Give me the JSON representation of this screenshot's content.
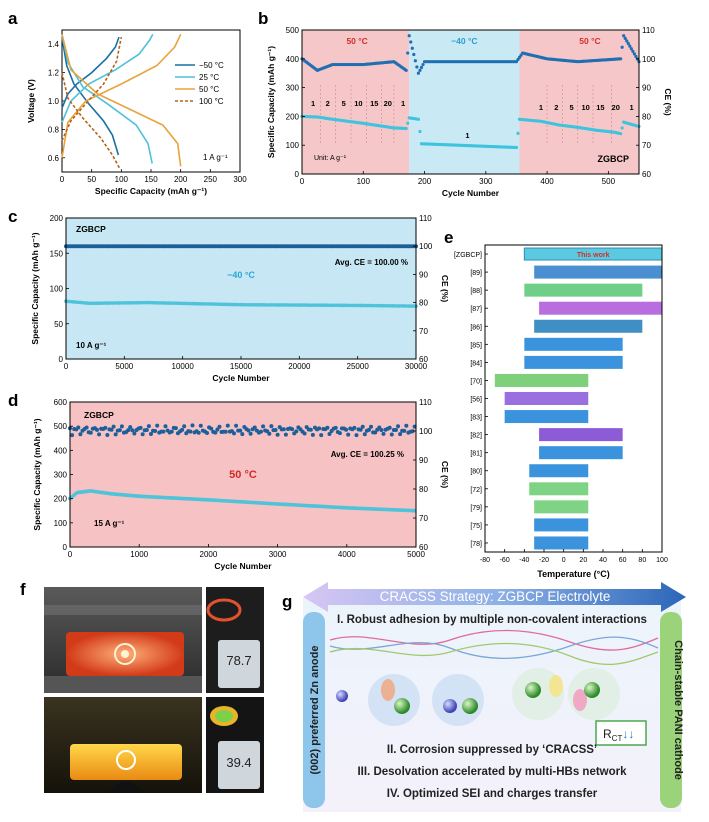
{
  "panel_labels": {
    "a": "a",
    "b": "b",
    "c": "c",
    "d": "d",
    "e": "e",
    "f": "f",
    "g": "g"
  },
  "colors": {
    "c_m50": "#1a6fa3",
    "c_25": "#4fc1d9",
    "c_50": "#e8a33a",
    "c_100": "#b5621b",
    "b_blue": "#1f6fb2",
    "b_cyan": "#3fc3df",
    "pink_bg": "#f6c7c9",
    "blue_bg": "#c9e9f4",
    "d_bg": "#f7c2c4",
    "c_bg": "#c6e7f3"
  },
  "chart_data": [
    {
      "id": "a",
      "type": "line",
      "xlabel": "Specific Capacity (mAh g⁻¹)",
      "ylabel": "Voltage (V)",
      "xlim": [
        0,
        300
      ],
      "ylim": [
        0.5,
        1.5
      ],
      "xticks": [
        "0",
        "50",
        "100",
        "150",
        "200",
        "250",
        "300"
      ],
      "yticks": [
        "0.6",
        "0.8",
        "1.0",
        "1.2",
        "1.4"
      ],
      "annotation": "1 A g⁻¹",
      "legend_position": "right",
      "series": [
        {
          "name": "−50 °C",
          "color": "#1a6fa3",
          "dash": false,
          "charge": [
            [
              0,
              0.95
            ],
            [
              10,
              1.05
            ],
            [
              25,
              1.12
            ],
            [
              50,
              1.2
            ],
            [
              75,
              1.3
            ],
            [
              90,
              1.38
            ],
            [
              96,
              1.45
            ]
          ],
          "discharge": [
            [
              0,
              1.45
            ],
            [
              8,
              1.25
            ],
            [
              20,
              1.12
            ],
            [
              45,
              0.98
            ],
            [
              70,
              0.86
            ],
            [
              85,
              0.76
            ],
            [
              95,
              0.62
            ]
          ]
        },
        {
          "name": "25 °C",
          "color": "#4fc1d9",
          "dash": false,
          "charge": [
            [
              0,
              0.85
            ],
            [
              15,
              1.0
            ],
            [
              45,
              1.12
            ],
            [
              90,
              1.22
            ],
            [
              130,
              1.33
            ],
            [
              148,
              1.43
            ],
            [
              153,
              1.47
            ]
          ],
          "discharge": [
            [
              0,
              1.47
            ],
            [
              10,
              1.27
            ],
            [
              35,
              1.1
            ],
            [
              80,
              0.97
            ],
            [
              125,
              0.83
            ],
            [
              145,
              0.7
            ],
            [
              152,
              0.56
            ]
          ]
        },
        {
          "name": "50 °C",
          "color": "#e8a33a",
          "dash": false,
          "charge": [
            [
              0,
              0.6
            ],
            [
              10,
              0.85
            ],
            [
              40,
              1.0
            ],
            [
              100,
              1.12
            ],
            [
              160,
              1.25
            ],
            [
              190,
              1.38
            ],
            [
              200,
              1.47
            ]
          ],
          "discharge": [
            [
              0,
              1.47
            ],
            [
              15,
              1.22
            ],
            [
              60,
              1.05
            ],
            [
              120,
              0.93
            ],
            [
              170,
              0.83
            ],
            [
              195,
              0.7
            ],
            [
              200,
              0.54
            ]
          ]
        },
        {
          "name": "100 °C",
          "color": "#b5621b",
          "dash": true,
          "charge": [
            [
              0,
              0.72
            ],
            [
              15,
              0.86
            ],
            [
              40,
              0.98
            ],
            [
              70,
              1.12
            ],
            [
              92,
              1.28
            ],
            [
              100,
              1.45
            ]
          ],
          "discharge": [
            [
              0,
              1.2
            ],
            [
              10,
              1.02
            ],
            [
              35,
              0.88
            ],
            [
              65,
              0.74
            ],
            [
              85,
              0.62
            ],
            [
              98,
              0.52
            ]
          ]
        }
      ]
    },
    {
      "id": "b",
      "type": "scatter",
      "xlabel": "Cycle Number",
      "ylabel": "Specific Capacity (mAh g⁻¹)",
      "ylabel_right": "CE (%)",
      "xlim": [
        0,
        550
      ],
      "ylim": [
        0,
        500
      ],
      "ylim_right": [
        60,
        110
      ],
      "xticks": [
        "0",
        "100",
        "200",
        "300",
        "400",
        "500"
      ],
      "yticks": [
        "0",
        "100",
        "200",
        "300",
        "400",
        "500"
      ],
      "yticks_right": [
        "60",
        "70",
        "80",
        "90",
        "100",
        "110"
      ],
      "region_labels": [
        "50 °C",
        "−40 °C",
        "50 °C"
      ],
      "rate_labels_left": [
        "1",
        "2",
        "5",
        "10",
        "15",
        "20",
        "1"
      ],
      "rate_labels_mid": [
        "1"
      ],
      "rate_labels_right": [
        "1",
        "2",
        "5",
        "10",
        "15",
        "20",
        "1"
      ],
      "unit_text": "Unit: A g⁻¹",
      "name_text": "ZGBCP",
      "capacity_steps": [
        [
          0,
          200
        ],
        [
          25,
          198
        ],
        [
          50,
          190
        ],
        [
          75,
          183
        ],
        [
          100,
          176
        ],
        [
          125,
          168
        ],
        [
          150,
          160
        ],
        [
          170,
          158
        ],
        [
          175,
          195
        ],
        [
          190,
          190
        ],
        [
          195,
          105
        ],
        [
          350,
          92
        ],
        [
          355,
          190
        ],
        [
          390,
          183
        ],
        [
          420,
          170
        ],
        [
          450,
          162
        ],
        [
          480,
          152
        ],
        [
          510,
          145
        ],
        [
          520,
          140
        ],
        [
          525,
          180
        ],
        [
          550,
          165
        ]
      ],
      "ce_points": [
        [
          0,
          100
        ],
        [
          25,
          96
        ],
        [
          50,
          98
        ],
        [
          100,
          98
        ],
        [
          150,
          99
        ],
        [
          170,
          96
        ],
        [
          175,
          108
        ],
        [
          190,
          95
        ],
        [
          200,
          99
        ],
        [
          350,
          99
        ],
        [
          360,
          102
        ],
        [
          400,
          100
        ],
        [
          450,
          99
        ],
        [
          520,
          100
        ],
        [
          525,
          108
        ],
        [
          550,
          99
        ]
      ]
    },
    {
      "id": "c",
      "type": "scatter",
      "xlabel": "Cycle Number",
      "ylabel": "Specific Capacity (mAh g⁻¹)",
      "ylabel_right": "CE (%)",
      "xlim": [
        0,
        30000
      ],
      "ylim": [
        0,
        200
      ],
      "ylim_right": [
        60,
        110
      ],
      "xticks": [
        "0",
        "5000",
        "10000",
        "15000",
        "20000",
        "25000",
        "30000"
      ],
      "yticks": [
        "0",
        "50",
        "100",
        "150",
        "200"
      ],
      "yticks_right": [
        "60",
        "70",
        "80",
        "90",
        "100",
        "110"
      ],
      "name_text": "ZGBCP",
      "temp_text": "−40 °C",
      "ce_text": "Avg. CE = 100.00 %",
      "rate_text": "10 A g⁻¹",
      "capacity": [
        [
          0,
          82
        ],
        [
          2000,
          79
        ],
        [
          7000,
          80
        ],
        [
          15000,
          77
        ],
        [
          25000,
          76
        ],
        [
          30000,
          75
        ]
      ],
      "ce_value": 100
    },
    {
      "id": "d",
      "type": "scatter",
      "xlabel": "Cycle Number",
      "ylabel": "Specific Capacity (mAh g⁻¹)",
      "ylabel_right": "CE (%)",
      "xlim": [
        0,
        5000
      ],
      "ylim": [
        0,
        600
      ],
      "ylim_right": [
        60,
        110
      ],
      "xticks": [
        "0",
        "1000",
        "2000",
        "3000",
        "4000",
        "5000"
      ],
      "yticks": [
        "0",
        "100",
        "200",
        "300",
        "400",
        "500",
        "600"
      ],
      "yticks_right": [
        "60",
        "70",
        "80",
        "90",
        "100",
        "110"
      ],
      "name_text": "ZGBCP",
      "temp_text": "50 °C",
      "ce_text": "Avg. CE = 100.25 %",
      "rate_text": "15 A g⁻¹",
      "capacity": [
        [
          0,
          200
        ],
        [
          100,
          225
        ],
        [
          300,
          232
        ],
        [
          600,
          220
        ],
        [
          1000,
          210
        ],
        [
          2000,
          195
        ],
        [
          3000,
          178
        ],
        [
          4000,
          162
        ],
        [
          5000,
          150
        ]
      ],
      "ce_value": 100.25
    },
    {
      "id": "e",
      "type": "bar",
      "xlabel": "Temperature (°C)",
      "xlim": [
        -80,
        100
      ],
      "xticks": [
        "-80",
        "-60",
        "-40",
        "-20",
        "0",
        "20",
        "40",
        "60",
        "80",
        "100"
      ],
      "categories": [
        "[ZGBCP]",
        "[89]",
        "[88]",
        "[87]",
        "[86]",
        "[85]",
        "[84]",
        "[70]",
        "[56]",
        "[83]",
        "[82]",
        "[81]",
        "[80]",
        "[72]",
        "[79]",
        "[75]",
        "[78]"
      ],
      "ranges": [
        [
          -40,
          100
        ],
        [
          -30,
          100
        ],
        [
          -40,
          80
        ],
        [
          -25,
          100
        ],
        [
          -30,
          80
        ],
        [
          -40,
          60
        ],
        [
          -40,
          60
        ],
        [
          -70,
          25
        ],
        [
          -60,
          25
        ],
        [
          -60,
          25
        ],
        [
          -25,
          60
        ],
        [
          -25,
          60
        ],
        [
          -35,
          25
        ],
        [
          -35,
          25
        ],
        [
          -30,
          25
        ],
        [
          -30,
          25
        ],
        [
          -30,
          25
        ]
      ],
      "bar_colors": [
        "#5cc9e0",
        "#4a8fd0",
        "#6fcf86",
        "#b96ee0",
        "#3f8fc4",
        "#3a93dc",
        "#3a93dc",
        "#7fd07a",
        "#9a6fe0",
        "#3a93dc",
        "#8d5ad8",
        "#3a93dc",
        "#3a93dc",
        "#7ed384",
        "#7ed384",
        "#3a93dc",
        "#3a93dc"
      ],
      "highlight_label": "This work"
    }
  ],
  "panel_g": {
    "title": "CRACSS Strategy: ZGBCP Electrolyte",
    "left_label": "(002) preferred Zn anode",
    "right_label": "Chain-stable PANI cathode",
    "line1": "I. Robust adhesion by multiple non-covalent interactions",
    "line2": "II. Corrosion suppressed by ‘CRACSS’",
    "line3": "III. Desolvation accelerated by multi-HBs network",
    "line4": "IV. Optimized SEI and charges transfer",
    "rct_text": "R",
    "rct_sub": "CT",
    "rct_arrows": "↓↓"
  },
  "panel_f": {
    "top_display": "78.7",
    "bottom_display": "39.4"
  }
}
